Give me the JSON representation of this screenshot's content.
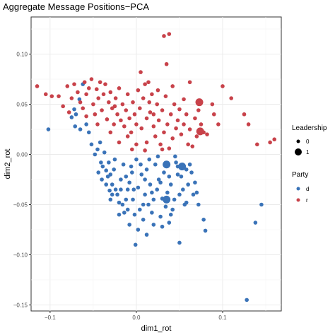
{
  "chart_data": {
    "type": "scatter",
    "title": "Aggregate Message Positions−PCA",
    "xlabel": "dim1_rot",
    "ylabel": "dim2_rot",
    "xlim": [
      -0.122,
      0.168
    ],
    "ylim": [
      -0.156,
      0.137
    ],
    "x_ticks": [
      -0.1,
      0.0,
      0.1
    ],
    "x_tick_labels": [
      "−0.1",
      "0.0",
      "0.1"
    ],
    "y_ticks": [
      0.1,
      0.05,
      0.0,
      -0.05,
      -0.1,
      -0.15
    ],
    "y_tick_labels": [
      "0.10",
      "0.05",
      "0.00",
      "−0.05",
      "−0.10",
      "−0.15"
    ],
    "grid": true,
    "legend_position": "right",
    "legend": {
      "leadership_title": "Leadership",
      "leadership_levels": [
        "0",
        "1"
      ],
      "party_title": "Party",
      "party_levels": [
        "d",
        "r"
      ]
    },
    "colors": {
      "d": "#3a73b8",
      "r": "#c8424a"
    },
    "series": [
      {
        "name": "d",
        "points": [
          [
            -0.102,
            0.025
          ],
          [
            -0.075,
            0.037
          ],
          [
            -0.072,
            0.045
          ],
          [
            -0.07,
            0.04
          ],
          [
            -0.066,
            0.055
          ],
          [
            -0.062,
            0.07
          ],
          [
            -0.071,
            0.028
          ],
          [
            -0.065,
            0.025
          ],
          [
            -0.058,
            0.03
          ],
          [
            -0.055,
            0.022
          ],
          [
            -0.052,
            0.01
          ],
          [
            -0.048,
            0.0
          ],
          [
            -0.045,
            0.005
          ],
          [
            -0.042,
            0.012
          ],
          [
            -0.041,
            -0.008
          ],
          [
            -0.039,
            -0.012
          ],
          [
            -0.035,
            -0.016
          ],
          [
            -0.037,
            0.002
          ],
          [
            -0.033,
            -0.022
          ],
          [
            -0.03,
            -0.02
          ],
          [
            -0.028,
            -0.03
          ],
          [
            -0.026,
            -0.015
          ],
          [
            -0.024,
            -0.035
          ],
          [
            -0.031,
            -0.036
          ],
          [
            -0.022,
            -0.04
          ],
          [
            -0.03,
            -0.045
          ],
          [
            -0.02,
            -0.048
          ],
          [
            -0.018,
            -0.025
          ],
          [
            -0.016,
            -0.05
          ],
          [
            -0.014,
            -0.058
          ],
          [
            -0.012,
            -0.022
          ],
          [
            -0.01,
            -0.035
          ],
          [
            -0.008,
            -0.028
          ],
          [
            -0.006,
            -0.012
          ],
          [
            -0.004,
            -0.045
          ],
          [
            -0.002,
            -0.06
          ],
          [
            0.0,
            -0.005
          ],
          [
            0.002,
            -0.033
          ],
          [
            0.004,
            -0.055
          ],
          [
            0.006,
            -0.02
          ],
          [
            0.008,
            -0.065
          ],
          [
            0.01,
            -0.04
          ],
          [
            0.012,
            -0.015
          ],
          [
            0.014,
            -0.05
          ],
          [
            0.016,
            -0.03
          ],
          [
            0.018,
            -0.058
          ],
          [
            0.02,
            -0.045
          ],
          [
            0.022,
            -0.01
          ],
          [
            0.024,
            -0.035
          ],
          [
            0.026,
            -0.025
          ],
          [
            0.028,
            -0.062
          ],
          [
            0.03,
            -0.044
          ],
          [
            0.032,
            -0.018
          ],
          [
            0.034,
            -0.052
          ],
          [
            0.036,
            -0.038
          ],
          [
            0.038,
            -0.068
          ],
          [
            0.04,
            -0.03
          ],
          [
            0.042,
            -0.055
          ],
          [
            0.044,
            -0.045
          ],
          [
            0.046,
            -0.008
          ],
          [
            0.048,
            -0.02
          ],
          [
            0.05,
            -0.04
          ],
          [
            0.052,
            -0.022
          ],
          [
            0.054,
            -0.035
          ],
          [
            0.056,
            -0.05
          ],
          [
            0.058,
            -0.048
          ],
          [
            0.06,
            -0.03
          ],
          [
            0.062,
            -0.01
          ],
          [
            0.064,
            -0.018
          ],
          [
            0.066,
            -0.04
          ],
          [
            0.068,
            -0.028
          ],
          [
            0.07,
            -0.038
          ],
          [
            0.072,
            -0.05
          ],
          [
            0.078,
            -0.065
          ],
          [
            0.08,
            -0.076
          ],
          [
            0.05,
            -0.088
          ],
          [
            -0.001,
            -0.09
          ],
          [
            0.128,
            -0.145
          ],
          [
            0.138,
            -0.068
          ],
          [
            0.145,
            -0.05
          ],
          [
            0.045,
            -0.002
          ],
          [
            -0.04,
            -0.025
          ],
          [
            -0.025,
            -0.005
          ],
          [
            -0.015,
            -0.01
          ],
          [
            -0.005,
            -0.018
          ],
          [
            0.005,
            -0.01
          ],
          [
            0.015,
            -0.005
          ],
          [
            0.025,
            -0.002
          ],
          [
            -0.02,
            -0.06
          ],
          [
            -0.008,
            -0.07
          ],
          [
            0.002,
            -0.075
          ],
          [
            0.012,
            -0.08
          ],
          [
            -0.01,
            -0.055
          ],
          [
            0.02,
            -0.07
          ],
          [
            0.03,
            -0.072
          ],
          [
            0.04,
            -0.06
          ],
          [
            -0.035,
            -0.03
          ],
          [
            -0.028,
            -0.04
          ],
          [
            -0.018,
            -0.035
          ],
          [
            -0.012,
            -0.045
          ],
          [
            0.008,
            -0.05
          ],
          [
            0.018,
            -0.038
          ],
          [
            0.028,
            -0.028
          ],
          [
            0.038,
            -0.022
          ],
          [
            0.048,
            -0.012
          ],
          [
            -0.044,
            -0.018
          ],
          [
            -0.032,
            -0.008
          ],
          [
            0.058,
            -0.015
          ],
          [
            0.01,
            -0.025
          ],
          [
            -0.003,
            -0.035
          ]
        ],
        "leadership": [
          [
            0.035,
            -0.01,
            1
          ],
          [
            0.053,
            -0.012,
            1
          ],
          [
            0.035,
            -0.045,
            1
          ]
        ]
      },
      {
        "name": "r",
        "points": [
          [
            -0.115,
            0.068
          ],
          [
            -0.105,
            0.06
          ],
          [
            -0.098,
            0.058
          ],
          [
            -0.09,
            0.058
          ],
          [
            -0.085,
            0.048
          ],
          [
            -0.08,
            0.068
          ],
          [
            -0.078,
            0.042
          ],
          [
            -0.075,
            0.056
          ],
          [
            -0.072,
            0.07
          ],
          [
            -0.068,
            0.062
          ],
          [
            -0.065,
            0.052
          ],
          [
            -0.062,
            0.046
          ],
          [
            -0.06,
            0.072
          ],
          [
            -0.058,
            0.06
          ],
          [
            -0.055,
            0.066
          ],
          [
            -0.052,
            0.075
          ],
          [
            -0.05,
            0.05
          ],
          [
            -0.048,
            0.04
          ],
          [
            -0.046,
            0.065
          ],
          [
            -0.044,
            0.056
          ],
          [
            -0.042,
            0.072
          ],
          [
            -0.04,
            0.044
          ],
          [
            -0.038,
            0.06
          ],
          [
            -0.036,
            0.07
          ],
          [
            -0.034,
            0.035
          ],
          [
            -0.032,
            0.052
          ],
          [
            -0.03,
            0.062
          ],
          [
            -0.028,
            0.046
          ],
          [
            -0.026,
            0.03
          ],
          [
            -0.024,
            0.056
          ],
          [
            -0.022,
            0.04
          ],
          [
            -0.02,
            0.066
          ],
          [
            -0.018,
            0.034
          ],
          [
            -0.016,
            0.05
          ],
          [
            -0.014,
            0.028
          ],
          [
            -0.012,
            0.044
          ],
          [
            -0.01,
            0.06
          ],
          [
            -0.008,
            0.036
          ],
          [
            -0.006,
            0.022
          ],
          [
            -0.004,
            0.052
          ],
          [
            -0.002,
            0.04
          ],
          [
            0.0,
            0.03
          ],
          [
            0.002,
            0.064
          ],
          [
            0.004,
            0.046
          ],
          [
            0.006,
            0.026
          ],
          [
            0.008,
            0.056
          ],
          [
            0.01,
            0.07
          ],
          [
            0.012,
            0.036
          ],
          [
            0.014,
            0.072
          ],
          [
            0.016,
            0.042
          ],
          [
            0.018,
            0.06
          ],
          [
            0.02,
            0.028
          ],
          [
            0.022,
            0.018
          ],
          [
            0.024,
            0.05
          ],
          [
            0.026,
            0.034
          ],
          [
            0.028,
            0.01
          ],
          [
            0.03,
            0.044
          ],
          [
            0.032,
            0.022
          ],
          [
            0.034,
            0.058
          ],
          [
            0.036,
            0.03
          ],
          [
            0.038,
            0.006
          ],
          [
            0.04,
            0.04
          ],
          [
            0.042,
            0.016
          ],
          [
            0.044,
            0.05
          ],
          [
            0.046,
            0.026
          ],
          [
            0.048,
            0.034
          ],
          [
            0.05,
            0.045
          ],
          [
            0.052,
            0.02
          ],
          [
            0.055,
            0.03
          ],
          [
            0.058,
            0.04
          ],
          [
            0.06,
            0.01
          ],
          [
            0.062,
            0.025
          ],
          [
            0.065,
            0.008
          ],
          [
            0.068,
            0.036
          ],
          [
            0.07,
            0.018
          ],
          [
            0.072,
            0.044
          ],
          [
            0.075,
            0.03
          ],
          [
            0.078,
            0.022
          ],
          [
            0.082,
            0.02
          ],
          [
            0.088,
            0.05
          ],
          [
            0.09,
            0.04
          ],
          [
            0.095,
            0.03
          ],
          [
            0.1,
            0.068
          ],
          [
            0.11,
            0.056
          ],
          [
            0.125,
            0.04
          ],
          [
            0.13,
            0.03
          ],
          [
            0.14,
            0.01
          ],
          [
            0.155,
            0.012
          ],
          [
            0.16,
            0.015
          ],
          [
            0.062,
            0.072
          ],
          [
            0.032,
            0.118
          ],
          [
            0.038,
            0.12
          ],
          [
            0.035,
            0.09
          ],
          [
            -0.01,
            0.018
          ],
          [
            0.0,
            0.01
          ],
          [
            0.01,
            0.004
          ],
          [
            -0.02,
            0.012
          ],
          [
            -0.03,
            0.022
          ],
          [
            0.015,
            0.052
          ],
          [
            0.025,
            0.064
          ],
          [
            -0.045,
            0.03
          ],
          [
            -0.058,
            0.038
          ],
          [
            0.005,
            0.082
          ],
          [
            0.042,
            0.068
          ],
          [
            0.055,
            0.055
          ],
          [
            0.02,
            0.04
          ],
          [
            -0.025,
            0.048
          ],
          [
            0.03,
            0.005
          ],
          [
            -0.005,
            0.005
          ],
          [
            0.012,
            0.012
          ]
        ],
        "leadership": [
          [
            0.073,
            0.052,
            1
          ],
          [
            0.074,
            0.023,
            1
          ]
        ]
      }
    ]
  }
}
